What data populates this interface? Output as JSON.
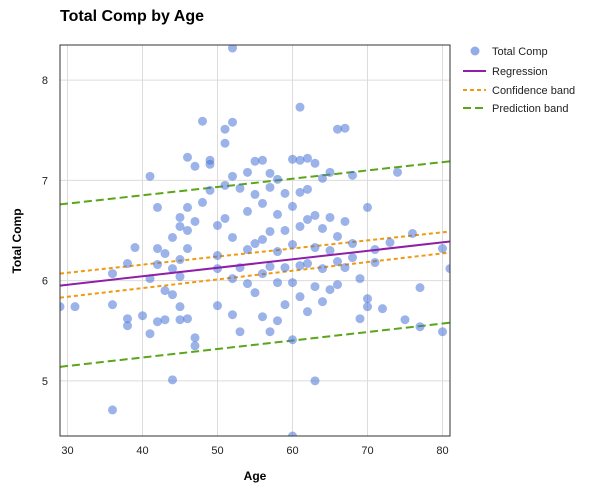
{
  "chart_data": {
    "type": "scatter",
    "title": "Total Comp by Age",
    "xlabel": "Age",
    "ylabel": "Total Comp",
    "xlim": [
      29,
      81
    ],
    "ylim": [
      4.45,
      8.35
    ],
    "xticks": [
      30,
      40,
      50,
      60,
      70,
      80
    ],
    "yticks": [
      5,
      6,
      7,
      8
    ],
    "grid": true,
    "legend_position": "top-right outside",
    "colors": {
      "points": "#4a74d8",
      "regression": "#8e1fa6",
      "confidence": "#ef9a10",
      "prediction": "#5aa51a"
    },
    "legend": [
      "Total Comp",
      "Regression",
      "Confidence band",
      "Prediction band"
    ],
    "lines": {
      "regression": {
        "name": "Regression",
        "x": [
          29,
          81
        ],
        "y": [
          5.95,
          6.39
        ]
      },
      "confidence_upper": {
        "name": "Confidence band",
        "x": [
          29,
          81
        ],
        "y": [
          6.07,
          6.49
        ]
      },
      "confidence_lower": {
        "name": "Confidence band",
        "x": [
          29,
          81
        ],
        "y": [
          5.83,
          6.28
        ]
      },
      "prediction_upper": {
        "name": "Prediction band",
        "x": [
          29,
          81
        ],
        "y": [
          6.76,
          7.19
        ]
      },
      "prediction_lower": {
        "name": "Prediction band",
        "x": [
          29,
          81
        ],
        "y": [
          5.14,
          5.58
        ]
      }
    },
    "series": [
      {
        "name": "Total Comp",
        "points": [
          [
            29,
            5.74
          ],
          [
            31,
            5.74
          ],
          [
            36,
            4.71
          ],
          [
            36,
            5.76
          ],
          [
            36,
            6.07
          ],
          [
            38,
            6.17
          ],
          [
            38,
            5.62
          ],
          [
            38,
            5.55
          ],
          [
            39,
            6.33
          ],
          [
            40,
            5.65
          ],
          [
            41,
            7.04
          ],
          [
            41,
            5.47
          ],
          [
            41,
            6.02
          ],
          [
            42,
            6.73
          ],
          [
            42,
            6.32
          ],
          [
            42,
            6.16
          ],
          [
            42,
            5.59
          ],
          [
            43,
            5.9
          ],
          [
            43,
            5.61
          ],
          [
            43,
            6.27
          ],
          [
            44,
            5.01
          ],
          [
            44,
            6.12
          ],
          [
            44,
            5.86
          ],
          [
            44,
            6.43
          ],
          [
            45,
            6.63
          ],
          [
            45,
            6.21
          ],
          [
            45,
            6.54
          ],
          [
            45,
            6.04
          ],
          [
            45,
            5.74
          ],
          [
            45,
            5.61
          ],
          [
            46,
            7.23
          ],
          [
            46,
            6.73
          ],
          [
            46,
            6.5
          ],
          [
            46,
            6.32
          ],
          [
            46,
            5.62
          ],
          [
            47,
            6.59
          ],
          [
            47,
            5.43
          ],
          [
            47,
            5.35
          ],
          [
            47,
            7.14
          ],
          [
            48,
            7.59
          ],
          [
            48,
            6.78
          ],
          [
            49,
            7.2
          ],
          [
            49,
            7.16
          ],
          [
            49,
            6.9
          ],
          [
            50,
            6.12
          ],
          [
            50,
            6.25
          ],
          [
            50,
            6.55
          ],
          [
            50,
            5.75
          ],
          [
            51,
            7.51
          ],
          [
            51,
            7.37
          ],
          [
            51,
            6.95
          ],
          [
            51,
            6.62
          ],
          [
            52,
            8.32
          ],
          [
            52,
            7.58
          ],
          [
            52,
            7.04
          ],
          [
            52,
            6.43
          ],
          [
            52,
            6.02
          ],
          [
            52,
            5.66
          ],
          [
            53,
            6.92
          ],
          [
            53,
            6.13
          ],
          [
            53,
            5.49
          ],
          [
            54,
            7.08
          ],
          [
            54,
            6.69
          ],
          [
            54,
            6.31
          ],
          [
            54,
            5.97
          ],
          [
            55,
            7.19
          ],
          [
            55,
            6.86
          ],
          [
            55,
            6.37
          ],
          [
            55,
            5.88
          ],
          [
            56,
            7.2
          ],
          [
            56,
            6.77
          ],
          [
            56,
            6.41
          ],
          [
            56,
            6.07
          ],
          [
            56,
            5.64
          ],
          [
            57,
            7.07
          ],
          [
            57,
            6.93
          ],
          [
            57,
            6.49
          ],
          [
            57,
            6.14
          ],
          [
            57,
            5.49
          ],
          [
            58,
            7.01
          ],
          [
            58,
            6.66
          ],
          [
            58,
            6.29
          ],
          [
            58,
            5.98
          ],
          [
            58,
            5.6
          ],
          [
            59,
            6.87
          ],
          [
            59,
            6.5
          ],
          [
            59,
            6.13
          ],
          [
            59,
            5.76
          ],
          [
            60,
            4.45
          ],
          [
            60,
            7.21
          ],
          [
            60,
            6.74
          ],
          [
            60,
            6.36
          ],
          [
            60,
            5.98
          ],
          [
            60,
            5.41
          ],
          [
            61,
            7.73
          ],
          [
            61,
            7.2
          ],
          [
            61,
            6.88
          ],
          [
            61,
            6.54
          ],
          [
            61,
            6.15
          ],
          [
            61,
            5.84
          ],
          [
            62,
            7.22
          ],
          [
            62,
            6.91
          ],
          [
            62,
            6.61
          ],
          [
            62,
            6.17
          ],
          [
            62,
            5.69
          ],
          [
            63,
            5.0
          ],
          [
            63,
            7.17
          ],
          [
            63,
            6.65
          ],
          [
            63,
            6.33
          ],
          [
            63,
            5.94
          ],
          [
            64,
            7.02
          ],
          [
            64,
            6.52
          ],
          [
            64,
            6.12
          ],
          [
            64,
            5.79
          ],
          [
            65,
            7.08
          ],
          [
            65,
            6.63
          ],
          [
            65,
            6.3
          ],
          [
            65,
            5.91
          ],
          [
            66,
            7.51
          ],
          [
            66,
            6.44
          ],
          [
            66,
            6.19
          ],
          [
            66,
            5.96
          ],
          [
            67,
            7.52
          ],
          [
            67,
            6.59
          ],
          [
            67,
            6.13
          ],
          [
            68,
            7.05
          ],
          [
            68,
            6.37
          ],
          [
            68,
            6.23
          ],
          [
            69,
            6.02
          ],
          [
            69,
            5.62
          ],
          [
            70,
            6.73
          ],
          [
            70,
            5.74
          ],
          [
            70,
            5.82
          ],
          [
            71,
            6.31
          ],
          [
            71,
            6.18
          ],
          [
            72,
            5.72
          ],
          [
            73,
            6.38
          ],
          [
            74,
            7.08
          ],
          [
            75,
            5.61
          ],
          [
            76,
            6.47
          ],
          [
            77,
            5.93
          ],
          [
            77,
            5.54
          ],
          [
            80,
            5.49
          ],
          [
            80,
            6.32
          ],
          [
            81,
            6.12
          ]
        ]
      }
    ]
  }
}
